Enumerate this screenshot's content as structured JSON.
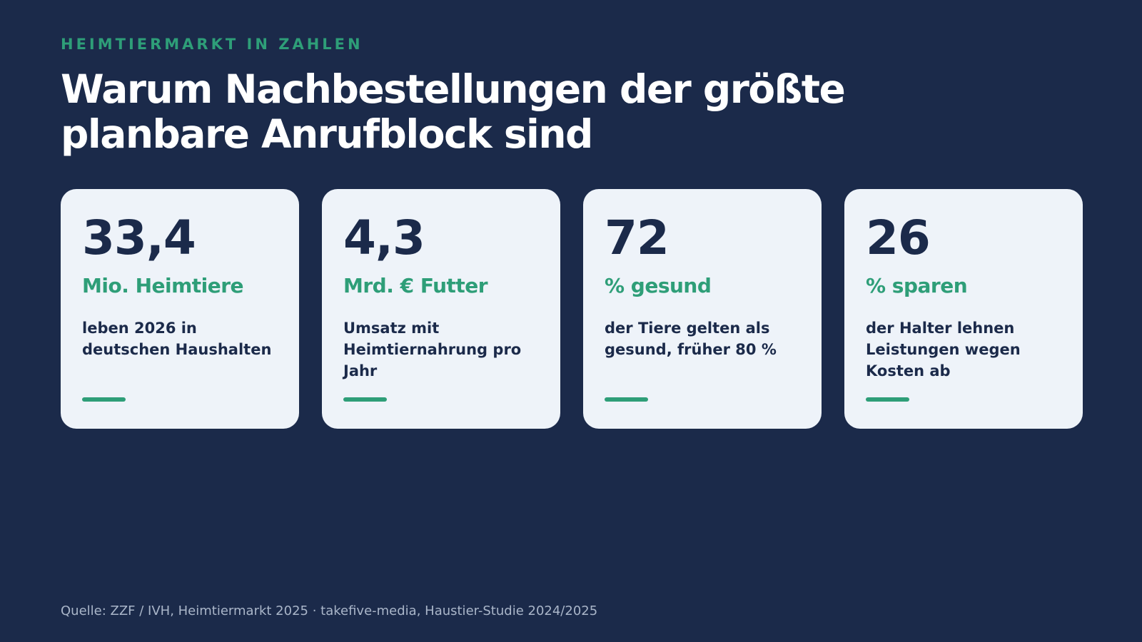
{
  "eyebrow": "HEIMTIERMARKT IN ZAHLEN",
  "title": "Warum Nachbestellungen der größte planbare Anrufblock sind",
  "cards": [
    {
      "value": "33,4",
      "unit": "Mio. Heimtiere",
      "description": "leben 2026 in deutschen Haushalten"
    },
    {
      "value": "4,3",
      "unit": "Mrd. € Futter",
      "description": "Umsatz mit Heimtiernahrung pro Jahr"
    },
    {
      "value": "72",
      "unit": "% gesund",
      "description": "der Tiere gelten als gesund, früher 80 %"
    },
    {
      "value": "26",
      "unit": "% sparen",
      "description": "der Halter lehnen Leistungen wegen Kosten ab"
    }
  ],
  "source": "Quelle: ZZF / IVH, Heimtiermarkt 2025 · takefive-media, Haustier-Studie 2024/2025",
  "colors": {
    "background": "#1b2a4a",
    "accent": "#2e9e78",
    "card": "#eef3f9",
    "text_dark": "#1b2a4a",
    "source_text": "#aab6c9"
  }
}
